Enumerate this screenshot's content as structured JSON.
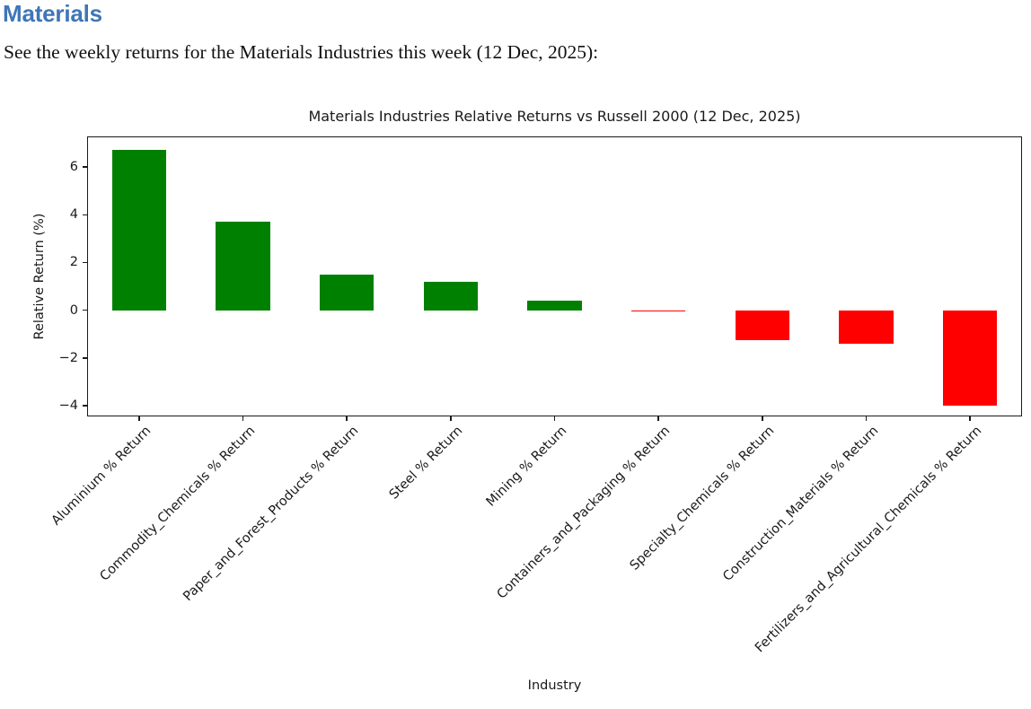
{
  "header": {
    "title": "Materials",
    "title_color": "#3f76b6"
  },
  "intro": {
    "text": "See the weekly returns for the Materials Industries this week (12 Dec, 2025):"
  },
  "chart_data": {
    "type": "bar",
    "title": "Materials Industries Relative Returns vs Russell 2000 (12 Dec, 2025)",
    "xlabel": "Industry",
    "ylabel": "Relative Return (%)",
    "categories": [
      "Aluminium % Return",
      "Commodity_Chemicals % Return",
      "Paper_and_Forest_Products % Return",
      "Steel % Return",
      "Mining % Return",
      "Containers_and_Packaging % Return",
      "Specialty_Chemicals % Return",
      "Construction_Materials % Return",
      "Fertilizers_and_Agricultural_Chemicals % Return"
    ],
    "values": [
      6.7,
      3.7,
      1.5,
      1.2,
      0.4,
      -0.05,
      -1.25,
      -1.4,
      -4.0
    ],
    "yticks": [
      -4,
      -2,
      0,
      2,
      4,
      6
    ],
    "ylim": [
      -4.45,
      7.28
    ],
    "positive_color": "#008000",
    "negative_color": "#ff0000",
    "axis_color": "#1a1a1a",
    "grid": false,
    "legend": "none",
    "tick_label_rotation": 45
  }
}
